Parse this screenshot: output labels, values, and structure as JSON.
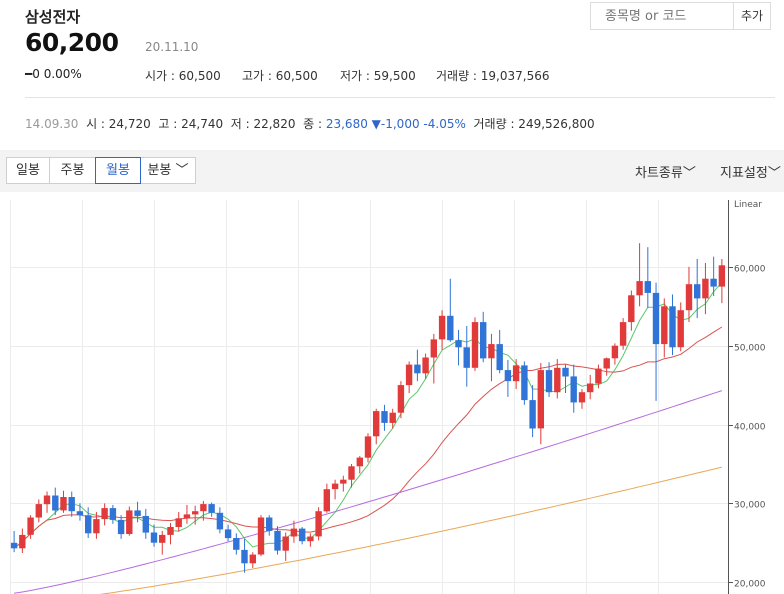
{
  "stock": {
    "name": "삼성전자",
    "price": "60,200",
    "date": "20.11.10",
    "change": "━0",
    "change_pct": "0.00%",
    "open": "시가 : 60,500",
    "high": "고가 : 60,500",
    "low": "저가 : 59,500",
    "volume": "거래량 : 19,037,566"
  },
  "search": {
    "placeholder": "종목명 or 코드",
    "add_label": "추가"
  },
  "history": {
    "date": "14.09.30",
    "open": "시 : 24,720",
    "high": "고 : 24,740",
    "low": "저 : 22,820",
    "close_label": "종 :",
    "close": "23,680",
    "change": "▼-1,000",
    "change_pct": "-4.05%",
    "volume": "거래량 : 249,526,800"
  },
  "toolbar": {
    "tabs": [
      "일봉",
      "주봉",
      "월봉",
      "분봉"
    ],
    "active_tab": "월봉",
    "chart_type_label": "차트종류",
    "indicator_label": "지표설정"
  },
  "chart_data": {
    "type": "candlestick",
    "scale_label": "Linear",
    "y_ticks": [
      "60,000",
      "50,000",
      "40,000",
      "30,000",
      "20,000"
    ],
    "ylim": [
      18500,
      69500
    ],
    "up_color": "#e03a3a",
    "down_color": "#2f74d6",
    "ma_colors": [
      "#5cc66a",
      "#d9534f",
      "#b56be0",
      "#e8a857"
    ],
    "candles": [
      [
        25000,
        26500,
        23800,
        24300
      ],
      [
        24300,
        26800,
        23700,
        26000
      ],
      [
        26000,
        28500,
        25500,
        28200
      ],
      [
        28200,
        30500,
        27600,
        29900
      ],
      [
        29900,
        31500,
        28800,
        31000
      ],
      [
        31000,
        32000,
        28500,
        29100
      ],
      [
        29100,
        31600,
        28800,
        30800
      ],
      [
        30800,
        31500,
        28300,
        29000
      ],
      [
        29000,
        30000,
        27800,
        28500
      ],
      [
        28500,
        29500,
        25600,
        26200
      ],
      [
        26200,
        28900,
        25500,
        28000
      ],
      [
        28000,
        30000,
        27200,
        29400
      ],
      [
        29400,
        29800,
        27400,
        27900
      ],
      [
        27900,
        28500,
        25500,
        26100
      ],
      [
        26100,
        29600,
        25900,
        29100
      ],
      [
        29100,
        30200,
        27600,
        28400
      ],
      [
        28400,
        29300,
        25500,
        26300
      ],
      [
        26300,
        27300,
        24500,
        25000
      ],
      [
        25000,
        26500,
        23500,
        26000
      ],
      [
        26000,
        27500,
        24800,
        27000
      ],
      [
        27000,
        28900,
        26400,
        28100
      ],
      [
        28100,
        29800,
        27400,
        28600
      ],
      [
        28600,
        29700,
        27300,
        29000
      ],
      [
        29000,
        30300,
        27800,
        29900
      ],
      [
        29900,
        30100,
        28300,
        28800
      ],
      [
        28800,
        29500,
        26200,
        26700
      ],
      [
        26700,
        27300,
        25200,
        25600
      ],
      [
        25600,
        26200,
        23500,
        24100
      ],
      [
        24100,
        25500,
        21200,
        22400
      ],
      [
        22400,
        23800,
        21800,
        23500
      ],
      [
        23500,
        28500,
        23300,
        28200
      ],
      [
        28200,
        28500,
        25900,
        26500
      ],
      [
        26500,
        27100,
        23500,
        24000
      ],
      [
        24000,
        26300,
        22700,
        25800
      ],
      [
        25800,
        27800,
        25000,
        26800
      ],
      [
        26800,
        27000,
        24800,
        25200
      ],
      [
        25200,
        26200,
        24500,
        25800
      ],
      [
        25800,
        29500,
        25300,
        29000
      ],
      [
        29000,
        32500,
        28800,
        31800
      ],
      [
        31800,
        33000,
        30500,
        32500
      ],
      [
        32500,
        33500,
        31500,
        33000
      ],
      [
        33000,
        35000,
        32000,
        34700
      ],
      [
        34700,
        36000,
        33800,
        35800
      ],
      [
        35800,
        38900,
        35200,
        38500
      ],
      [
        38500,
        42000,
        37500,
        41700
      ],
      [
        41700,
        42500,
        39200,
        40200
      ],
      [
        40200,
        42000,
        39500,
        41500
      ],
      [
        41500,
        45500,
        40800,
        45000
      ],
      [
        45000,
        48000,
        44000,
        47600
      ],
      [
        47600,
        49500,
        45500,
        46500
      ],
      [
        46500,
        49000,
        45800,
        48500
      ],
      [
        48500,
        51500,
        45200,
        50800
      ],
      [
        50800,
        54500,
        49500,
        53800
      ],
      [
        53800,
        58500,
        50500,
        50700
      ],
      [
        50700,
        52000,
        47500,
        49800
      ],
      [
        49800,
        52500,
        44800,
        47200
      ],
      [
        47200,
        53600,
        46800,
        53000
      ],
      [
        53000,
        54300,
        47900,
        48400
      ],
      [
        48400,
        51500,
        45500,
        50200
      ],
      [
        50200,
        52000,
        46500,
        46900
      ],
      [
        46900,
        48200,
        43500,
        45500
      ],
      [
        45500,
        48300,
        44500,
        47500
      ],
      [
        47500,
        48000,
        42500,
        43100
      ],
      [
        43100,
        45000,
        38400,
        39500
      ],
      [
        39500,
        47800,
        37500,
        46900
      ],
      [
        46900,
        47900,
        43500,
        44100
      ],
      [
        44100,
        48300,
        43300,
        47200
      ],
      [
        47200,
        47600,
        44000,
        46100
      ],
      [
        46100,
        47600,
        41500,
        42800
      ],
      [
        42800,
        44500,
        42000,
        44100
      ],
      [
        44100,
        46300,
        43200,
        45200
      ],
      [
        45200,
        47600,
        44600,
        47100
      ],
      [
        47100,
        48500,
        46200,
        48400
      ],
      [
        48400,
        50300,
        47600,
        50000
      ],
      [
        50000,
        53500,
        49500,
        53000
      ],
      [
        53000,
        57000,
        51900,
        56400
      ],
      [
        56400,
        63000,
        55000,
        58200
      ],
      [
        58200,
        62500,
        54800,
        56700
      ],
      [
        56700,
        58000,
        43000,
        50200
      ],
      [
        50200,
        56000,
        48500,
        55000
      ],
      [
        55000,
        56500,
        48800,
        49800
      ],
      [
        49800,
        55500,
        49300,
        54500
      ],
      [
        54500,
        60000,
        53000,
        57800
      ],
      [
        57800,
        61000,
        53500,
        56000
      ],
      [
        56000,
        60500,
        54000,
        58500
      ],
      [
        58500,
        61300,
        56300,
        57500
      ],
      [
        57500,
        61000,
        55400,
        60200
      ]
    ]
  }
}
